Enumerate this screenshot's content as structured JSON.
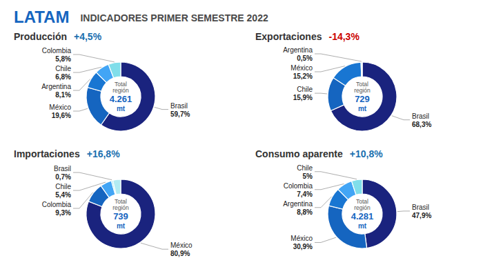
{
  "title": "LATAM",
  "subtitle": "INDICADORES PRIMER SEMESTRE 2022",
  "chart_data": [
    {
      "type": "pie",
      "title": "Producción",
      "categories": [
        "Brasil",
        "México",
        "Argentina",
        "Chile",
        "Colombia"
      ],
      "values": [
        59.7,
        19.6,
        8.1,
        6.8,
        5.8
      ],
      "value_labels": [
        "59,7%",
        "19,6%",
        "8,1%",
        "6,8%",
        "5,8%"
      ],
      "colors": [
        "#1a237e",
        "#1565c0",
        "#1976d2",
        "#42a5f5",
        "#80deea"
      ],
      "data_labels": true,
      "annotations": [
        {
          "text": "+4,5%",
          "color": "#1a6faf"
        },
        {
          "text": "Total\nregión"
        },
        {
          "text": "4.261"
        },
        {
          "text": "mt"
        }
      ]
    },
    {
      "type": "pie",
      "title": "Exportaciones",
      "categories": [
        "Brasil",
        "Chile",
        "México",
        "Argentina",
        null
      ],
      "values": [
        68.3,
        15.9,
        15.2,
        0.5,
        0.1
      ],
      "value_labels": [
        "68,3%",
        "15,9%",
        "15,2%",
        "0,5%",
        null
      ],
      "colors": [
        "#1a237e",
        "#1565c0",
        "#1976d2",
        "#42a5f5",
        "#80deea"
      ],
      "data_labels": true,
      "annotations": [
        {
          "text": "-14,3%",
          "color": "#cc0000"
        },
        {
          "text": "Total\nregión"
        },
        {
          "text": "729"
        },
        {
          "text": "mt"
        }
      ]
    },
    {
      "type": "pie",
      "title": "Importaciones",
      "categories": [
        "México",
        "Colombia",
        "Chile",
        "Brasil",
        null
      ],
      "values": [
        80.9,
        9.3,
        5.4,
        0.7,
        3.7
      ],
      "value_labels": [
        "80,9%",
        "9,3%",
        "5,4%",
        "0,7%",
        null
      ],
      "colors": [
        "#1a237e",
        "#1565c0",
        "#42a5f5",
        "#80deea",
        "#b2ebf2"
      ],
      "data_labels": true,
      "annotations": [
        {
          "text": "+16,8%",
          "color": "#1a6faf"
        },
        {
          "text": "Total\nregión"
        },
        {
          "text": "739"
        },
        {
          "text": "mt"
        }
      ]
    },
    {
      "type": "pie",
      "title": "Consumo aparente",
      "categories": [
        "Brasil",
        "México",
        "Argentina",
        "Colombia",
        "Chile"
      ],
      "values": [
        47.9,
        30.9,
        8.8,
        7.4,
        5.0
      ],
      "value_labels": [
        "47,9%",
        "30,9%",
        "8,8%",
        "7,4%",
        "5%"
      ],
      "colors": [
        "#1a237e",
        "#1565c0",
        "#1976d2",
        "#42a5f5",
        "#80deea"
      ],
      "data_labels": true,
      "annotations": [
        {
          "text": "+10,8%",
          "color": "#1a6faf"
        },
        {
          "text": "Total\nregión"
        },
        {
          "text": "4.281"
        },
        {
          "text": "mt"
        }
      ]
    }
  ]
}
